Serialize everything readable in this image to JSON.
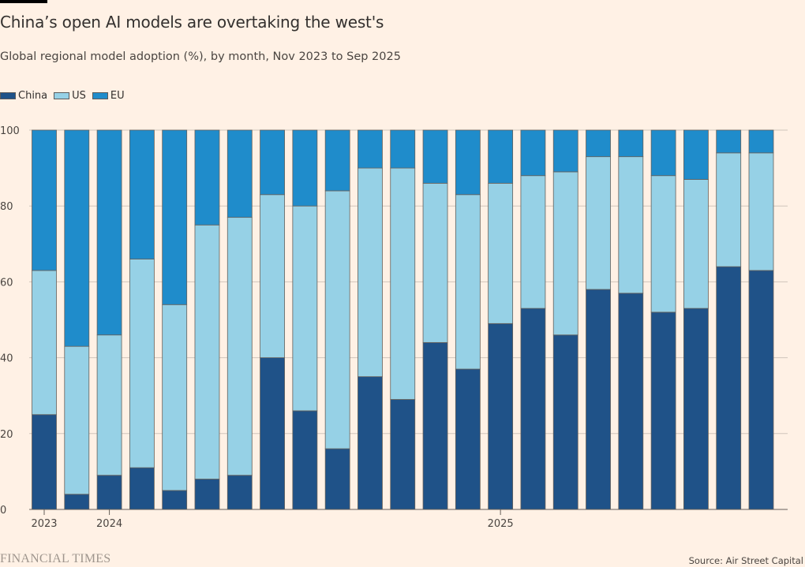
{
  "header": {
    "title": "China’s open AI models are overtaking the west's",
    "subtitle": "Global regional model adoption (%), by month, Nov 2023 to Sep 2025"
  },
  "legend": [
    {
      "label": "China",
      "color": "#1f5288"
    },
    {
      "label": "US",
      "color": "#96d1e6"
    },
    {
      "label": "EU",
      "color": "#1f8ccb"
    }
  ],
  "footer": {
    "logo": "FINANCIAL TIMES",
    "source": "Source: Air Street Capital"
  },
  "chart_data": {
    "type": "bar",
    "stacked": true,
    "title": "China’s open AI models are overtaking the west's",
    "subtitle": "Global regional model adoption (%), by month, Nov 2023 to Sep 2025",
    "xlabel": "",
    "ylabel": "",
    "ylim": [
      0,
      100
    ],
    "yticks": [
      0,
      20,
      40,
      60,
      80,
      100
    ],
    "grid": true,
    "legend_position": "top-left",
    "categories": [
      "Nov 2023",
      "Dec 2023",
      "Jan 2024",
      "Feb 2024",
      "Mar 2024",
      "Apr 2024",
      "May 2024",
      "Jun 2024",
      "Jul 2024",
      "Aug 2024",
      "Sep 2024",
      "Oct 2024",
      "Nov 2024",
      "Dec 2024",
      "Jan 2025",
      "Feb 2025",
      "Mar 2025",
      "Apr 2025",
      "May 2025",
      "Jun 2025",
      "Jul 2025",
      "Aug 2025",
      "Sep 2025"
    ],
    "xtick_labels": [
      {
        "label": "2023",
        "category_index": 0
      },
      {
        "label": "2024",
        "category_index": 2
      },
      {
        "label": "2025",
        "category_index": 14
      }
    ],
    "series": [
      {
        "name": "China",
        "color": "#1f5288",
        "values": [
          25,
          4,
          9,
          11,
          5,
          8,
          9,
          40,
          26,
          16,
          35,
          29,
          44,
          37,
          49,
          53,
          46,
          58,
          57,
          52,
          53,
          64,
          63
        ]
      },
      {
        "name": "US",
        "color": "#96d1e6",
        "values": [
          38,
          39,
          37,
          55,
          49,
          67,
          68,
          43,
          54,
          68,
          55,
          61,
          42,
          46,
          37,
          35,
          43,
          35,
          36,
          36,
          34,
          30,
          31
        ]
      },
      {
        "name": "EU",
        "color": "#1f8ccb",
        "values": [
          37,
          57,
          54,
          34,
          46,
          25,
          23,
          17,
          20,
          16,
          10,
          10,
          14,
          17,
          14,
          12,
          11,
          7,
          7,
          12,
          13,
          6,
          6
        ]
      }
    ]
  }
}
